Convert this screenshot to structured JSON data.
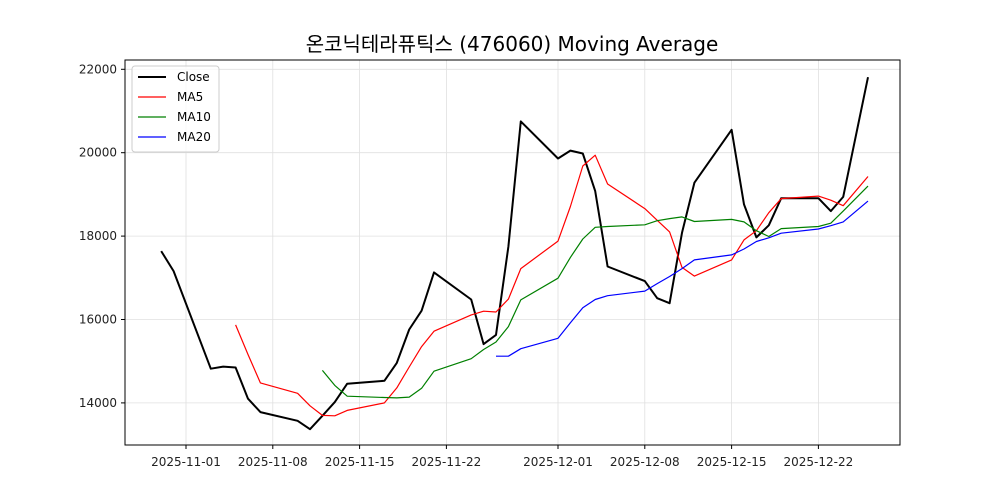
{
  "chart_data": {
    "type": "line",
    "title": "온코닉테라퓨틱스 (476060) Moving Average",
    "xlabel": "",
    "ylabel": "",
    "ylim": [
      12950,
      22200
    ],
    "yticks": [
      14000,
      16000,
      18000,
      20000,
      22000
    ],
    "xticks": [
      "2025-11-01",
      "2025-11-08",
      "2025-11-15",
      "2025-11-22",
      "2025-12-01",
      "2025-12-08",
      "2025-12-15",
      "2025-12-22"
    ],
    "xlim": [
      "2025-10-28",
      "2025-12-28"
    ],
    "grid": true,
    "legend_position": "upper left",
    "x": [
      "2025-10-30",
      "2025-10-31",
      "2025-11-03",
      "2025-11-04",
      "2025-11-05",
      "2025-11-06",
      "2025-11-07",
      "2025-11-10",
      "2025-11-11",
      "2025-11-12",
      "2025-11-13",
      "2025-11-14",
      "2025-11-17",
      "2025-11-18",
      "2025-11-19",
      "2025-11-20",
      "2025-11-21",
      "2025-11-24",
      "2025-11-25",
      "2025-11-26",
      "2025-11-27",
      "2025-11-28",
      "2025-12-01",
      "2025-12-02",
      "2025-12-03",
      "2025-12-04",
      "2025-12-05",
      "2025-12-08",
      "2025-12-09",
      "2025-12-10",
      "2025-12-11",
      "2025-12-12",
      "2025-12-15",
      "2025-12-16",
      "2025-12-17",
      "2025-12-18",
      "2025-12-19",
      "2025-12-22",
      "2025-12-23",
      "2025-12-24",
      "2025-12-26"
    ],
    "series": [
      {
        "name": "Close",
        "color": "#000000",
        "width": 2,
        "values": [
          17640,
          17160,
          14820,
          14870,
          14850,
          14100,
          13780,
          13570,
          13370,
          13690,
          14020,
          14460,
          14530,
          14960,
          15760,
          16210,
          17130,
          16480,
          15410,
          15630,
          17750,
          20750,
          19860,
          20050,
          19980,
          19080,
          17270,
          16920,
          16510,
          16390,
          18080,
          19280,
          20550,
          18760,
          17970,
          18260,
          18910,
          18910,
          18600,
          18940,
          21810
        ]
      },
      {
        "name": "MA5",
        "color": "#ff0000",
        "width": 1.2,
        "values": [
          null,
          null,
          null,
          null,
          15870,
          15160,
          14480,
          14230,
          13930,
          13700,
          13690,
          13820,
          14000,
          14360,
          14860,
          15350,
          15720,
          16110,
          16200,
          16180,
          16490,
          17220,
          17880,
          18710,
          19680,
          19940,
          19250,
          18660,
          18380,
          18100,
          17250,
          17040,
          17430,
          17910,
          18130,
          18560,
          18900,
          18960,
          18860,
          18730,
          19430
        ]
      },
      {
        "name": "MA10",
        "color": "#008000",
        "width": 1.2,
        "values": [
          null,
          null,
          null,
          null,
          null,
          null,
          null,
          null,
          null,
          14780,
          14420,
          14160,
          14130,
          14120,
          14140,
          14350,
          14760,
          15060,
          15280,
          15460,
          15830,
          16470,
          16990,
          17490,
          17930,
          18210,
          18230,
          18270,
          18370,
          18420,
          18460,
          18350,
          18400,
          18340,
          18130,
          17990,
          18180,
          18230,
          18310,
          18600,
          19200
        ]
      },
      {
        "name": "MA20",
        "color": "#0000ff",
        "width": 1.2,
        "values": [
          null,
          null,
          null,
          null,
          null,
          null,
          null,
          null,
          null,
          null,
          null,
          null,
          null,
          null,
          null,
          null,
          null,
          null,
          null,
          15120,
          15120,
          15300,
          15550,
          15920,
          16280,
          16480,
          16570,
          16680,
          16860,
          17030,
          17220,
          17430,
          17550,
          17690,
          17870,
          17960,
          18070,
          18170,
          18250,
          18340,
          18840
        ]
      }
    ]
  },
  "legend": {
    "items": [
      {
        "label": "Close",
        "color": "#000000"
      },
      {
        "label": "MA5",
        "color": "#ff0000"
      },
      {
        "label": "MA10",
        "color": "#008000"
      },
      {
        "label": "MA20",
        "color": "#0000ff"
      }
    ]
  }
}
